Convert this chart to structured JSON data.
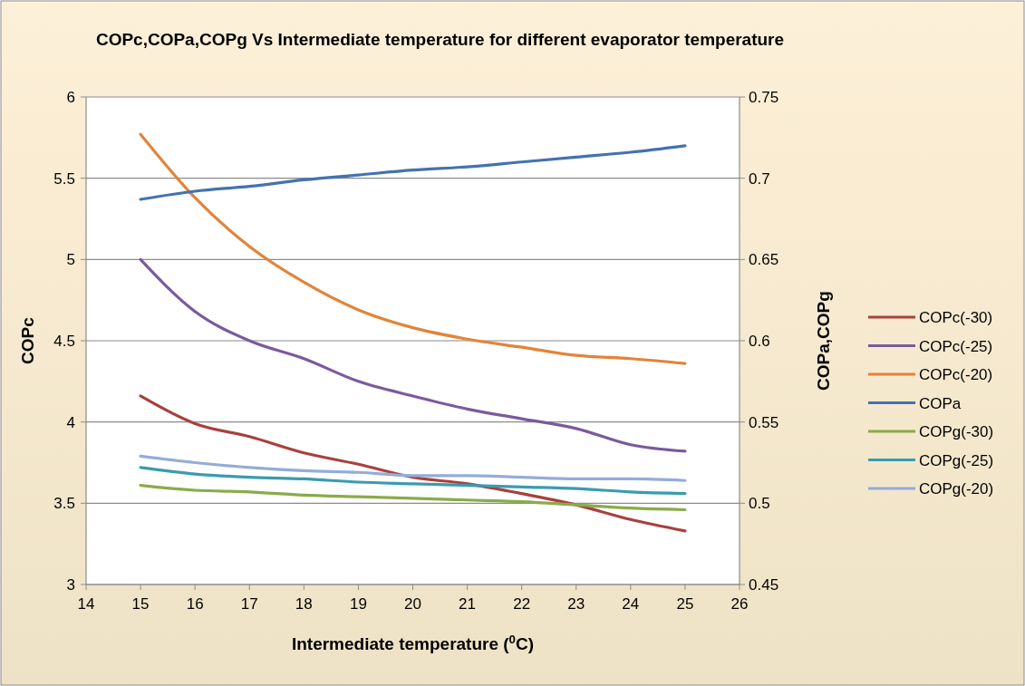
{
  "chart_data": {
    "type": "line",
    "title": "COPc,COPa,COPg Vs Intermediate temperature for different evaporator temperature",
    "xlabel": "Intermediate temperature ($^{0}$C)",
    "ylabel": "COPc",
    "y2label": "COPa,COPg",
    "x": [
      15,
      16,
      17,
      18,
      19,
      20,
      21,
      22,
      23,
      24,
      25
    ],
    "xlim": [
      14,
      26
    ],
    "xticks": [
      14,
      15,
      16,
      17,
      18,
      19,
      20,
      21,
      22,
      23,
      24,
      25,
      26
    ],
    "ylim": [
      3,
      6
    ],
    "yticks": [
      3,
      3.5,
      4,
      4.5,
      5,
      5.5,
      6
    ],
    "y2lim": [
      0.45,
      0.75
    ],
    "y2ticks": [
      0.45,
      0.5,
      0.55,
      0.6,
      0.65,
      0.7,
      0.75
    ],
    "grid": "y",
    "legend": "right",
    "line_style": "solid",
    "series": [
      {
        "name": "COPc(-30)",
        "color": "#a9403d",
        "values": [
          4.16,
          3.99,
          3.91,
          3.81,
          3.74,
          3.66,
          3.62,
          3.56,
          3.49,
          3.4,
          3.33
        ]
      },
      {
        "name": "COPc(-25)",
        "color": "#7a5a9e",
        "values": [
          5.0,
          4.68,
          4.5,
          4.39,
          4.25,
          4.16,
          4.08,
          4.02,
          3.96,
          3.86,
          3.82
        ]
      },
      {
        "name": "COPc(-20)",
        "color": "#e2843a",
        "values": [
          5.77,
          5.38,
          5.08,
          4.86,
          4.69,
          4.58,
          4.51,
          4.46,
          4.41,
          4.39,
          4.36
        ]
      },
      {
        "name": "COPa",
        "color": "#4472b0",
        "axis": "y2",
        "values": [
          0.687,
          0.692,
          0.695,
          0.699,
          0.702,
          0.705,
          0.707,
          0.71,
          0.713,
          0.716,
          0.72
        ]
      },
      {
        "name": "COPg(-30)",
        "color": "#8aab4a",
        "axis": "y2",
        "values": [
          0.511,
          0.508,
          0.507,
          0.505,
          0.504,
          0.503,
          0.502,
          0.501,
          0.499,
          0.497,
          0.496
        ]
      },
      {
        "name": "COPg(-25)",
        "color": "#3a9bb0",
        "axis": "y2",
        "values": [
          0.522,
          0.518,
          0.516,
          0.515,
          0.513,
          0.512,
          0.511,
          0.51,
          0.509,
          0.507,
          0.506
        ]
      },
      {
        "name": "COPg(-20)",
        "color": "#94acd8",
        "axis": "y2",
        "values": [
          0.529,
          0.525,
          0.522,
          0.52,
          0.519,
          0.517,
          0.517,
          0.516,
          0.515,
          0.515,
          0.514
        ]
      }
    ]
  }
}
